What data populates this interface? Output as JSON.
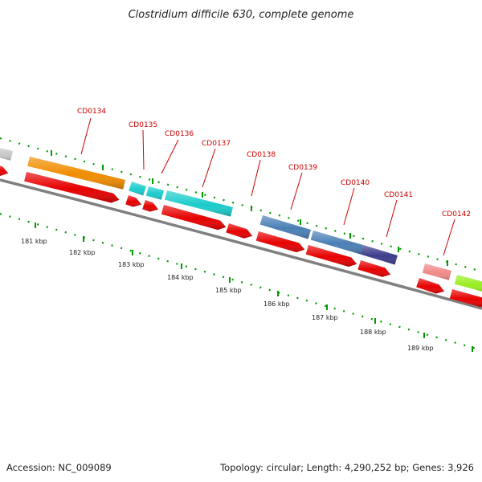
{
  "title": "Clostridium difficile 630, complete genome",
  "footer": {
    "accession": "Accession: NC_009089",
    "summary": "Topology: circular; Length: 4,290,252 bp; Genes: 3,926"
  },
  "genes": [
    {
      "id": "CD0134",
      "color": "#f08c00"
    },
    {
      "id": "CD0135",
      "color": "#1ccccc"
    },
    {
      "id": "CD0136",
      "color": "#1ccccc"
    },
    {
      "id": "CD0137",
      "color": "#1ccccc"
    },
    {
      "id": "CD0138",
      "color": "#4a7fb5"
    },
    {
      "id": "CD0139",
      "color": "#4a7fb5"
    },
    {
      "id": "CD0140",
      "color": "#4a7fb5"
    },
    {
      "id": "CD0141",
      "color": "#3c3c8c"
    },
    {
      "id": "CD0142",
      "color": "#f08a8a"
    }
  ],
  "kbp_ticks": [
    "181 kbp",
    "182 kbp",
    "183 kbp",
    "184 kbp",
    "185 kbp",
    "186 kbp",
    "187 kbp",
    "188 kbp",
    "189 kbp"
  ],
  "colors": {
    "cds_strand": "#e60000",
    "backbone": "#808080",
    "tick_dots": "#009900",
    "label": "#cc0000"
  }
}
